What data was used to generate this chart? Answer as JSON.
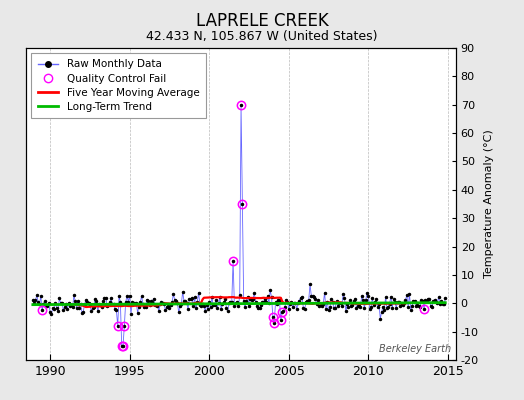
{
  "title": "LAPRELE CREEK",
  "subtitle": "42.433 N, 105.867 W (United States)",
  "ylabel_right": "Temperature Anomaly (°C)",
  "watermark": "Berkeley Earth",
  "xlim": [
    1988.5,
    2015.5
  ],
  "ylim": [
    -20,
    90
  ],
  "yticks": [
    -20,
    -10,
    0,
    10,
    20,
    30,
    40,
    50,
    60,
    70,
    80,
    90
  ],
  "xticks": [
    1990,
    1995,
    2000,
    2005,
    2010,
    2015
  ],
  "background_color": "#e8e8e8",
  "plot_bg_color": "#ffffff",
  "raw_line_color": "#6666ff",
  "raw_marker_color": "#000000",
  "qc_fail_color": "#ff00ff",
  "moving_avg_color": "#ff0000",
  "trend_color": "#00bb00",
  "title_fontsize": 12,
  "subtitle_fontsize": 9,
  "seed": 42,
  "n_points": 312,
  "start_year": 1988.917,
  "spike_times": [
    2002.0,
    2002.083,
    2001.5
  ],
  "spike_values": [
    70,
    35,
    15
  ],
  "dip_times": [
    1994.25,
    1994.5,
    1994.583,
    1994.667
  ],
  "dip_values": [
    -8,
    -15,
    -15,
    -8
  ],
  "qc_times": [
    1989.5,
    1994.25,
    1994.5,
    1994.583,
    1994.667,
    2001.5,
    2002.0,
    2002.083,
    2004.0,
    2004.083,
    2004.5,
    2004.583,
    2013.5
  ],
  "extra_noise_times": [
    2004.0,
    2004.083,
    2004.5,
    2004.583
  ],
  "extra_noise_values": [
    -5,
    -7,
    -6,
    -3
  ]
}
